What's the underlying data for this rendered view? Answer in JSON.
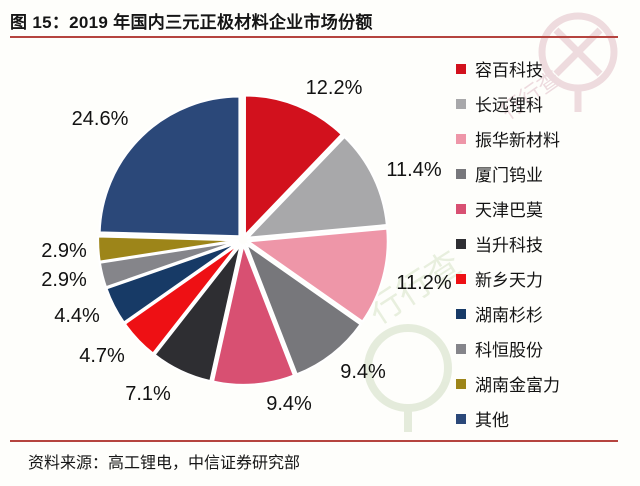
{
  "page": {
    "title": "图 15：2019 年国内三元正极材料企业市场份额",
    "source": "资料来源：高工锂电，中信证券研究部"
  },
  "watermark": {
    "text": "行行查"
  },
  "chart_data": {
    "type": "pie",
    "title": "2019 年国内三元正极材料企业市场份额",
    "unit": "percent",
    "start_angle": "12 o'clock, clockwise",
    "legend_position": "right",
    "slices": [
      {
        "name": "容百科技",
        "value": 12.2,
        "label": "12.2%",
        "color": "#d2111d"
      },
      {
        "name": "长远锂科",
        "value": 11.4,
        "label": "11.4%",
        "color": "#a8a8aa"
      },
      {
        "name": "振华新材料",
        "value": 11.2,
        "label": "11.2%",
        "color": "#ee96a8"
      },
      {
        "name": "厦门钨业",
        "value": 9.4,
        "label": "9.4%",
        "color": "#77777b"
      },
      {
        "name": "天津巴莫",
        "value": 9.4,
        "label": "9.4%",
        "color": "#d85072"
      },
      {
        "name": "当升科技",
        "value": 7.1,
        "label": "7.1%",
        "color": "#2e2e32"
      },
      {
        "name": "新乡天力",
        "value": 4.7,
        "label": "4.7%",
        "color": "#ee1014"
      },
      {
        "name": "湖南杉杉",
        "value": 4.4,
        "label": "4.4%",
        "color": "#173a66"
      },
      {
        "name": "科恒股份",
        "value": 2.9,
        "label": "2.9%",
        "color": "#85858a"
      },
      {
        "name": "湖南金富力",
        "value": 2.9,
        "label": "2.9%",
        "color": "#9d8519"
      },
      {
        "name": "其他",
        "value": 24.6,
        "label": "24.6%",
        "color": "#2b4879"
      }
    ]
  }
}
